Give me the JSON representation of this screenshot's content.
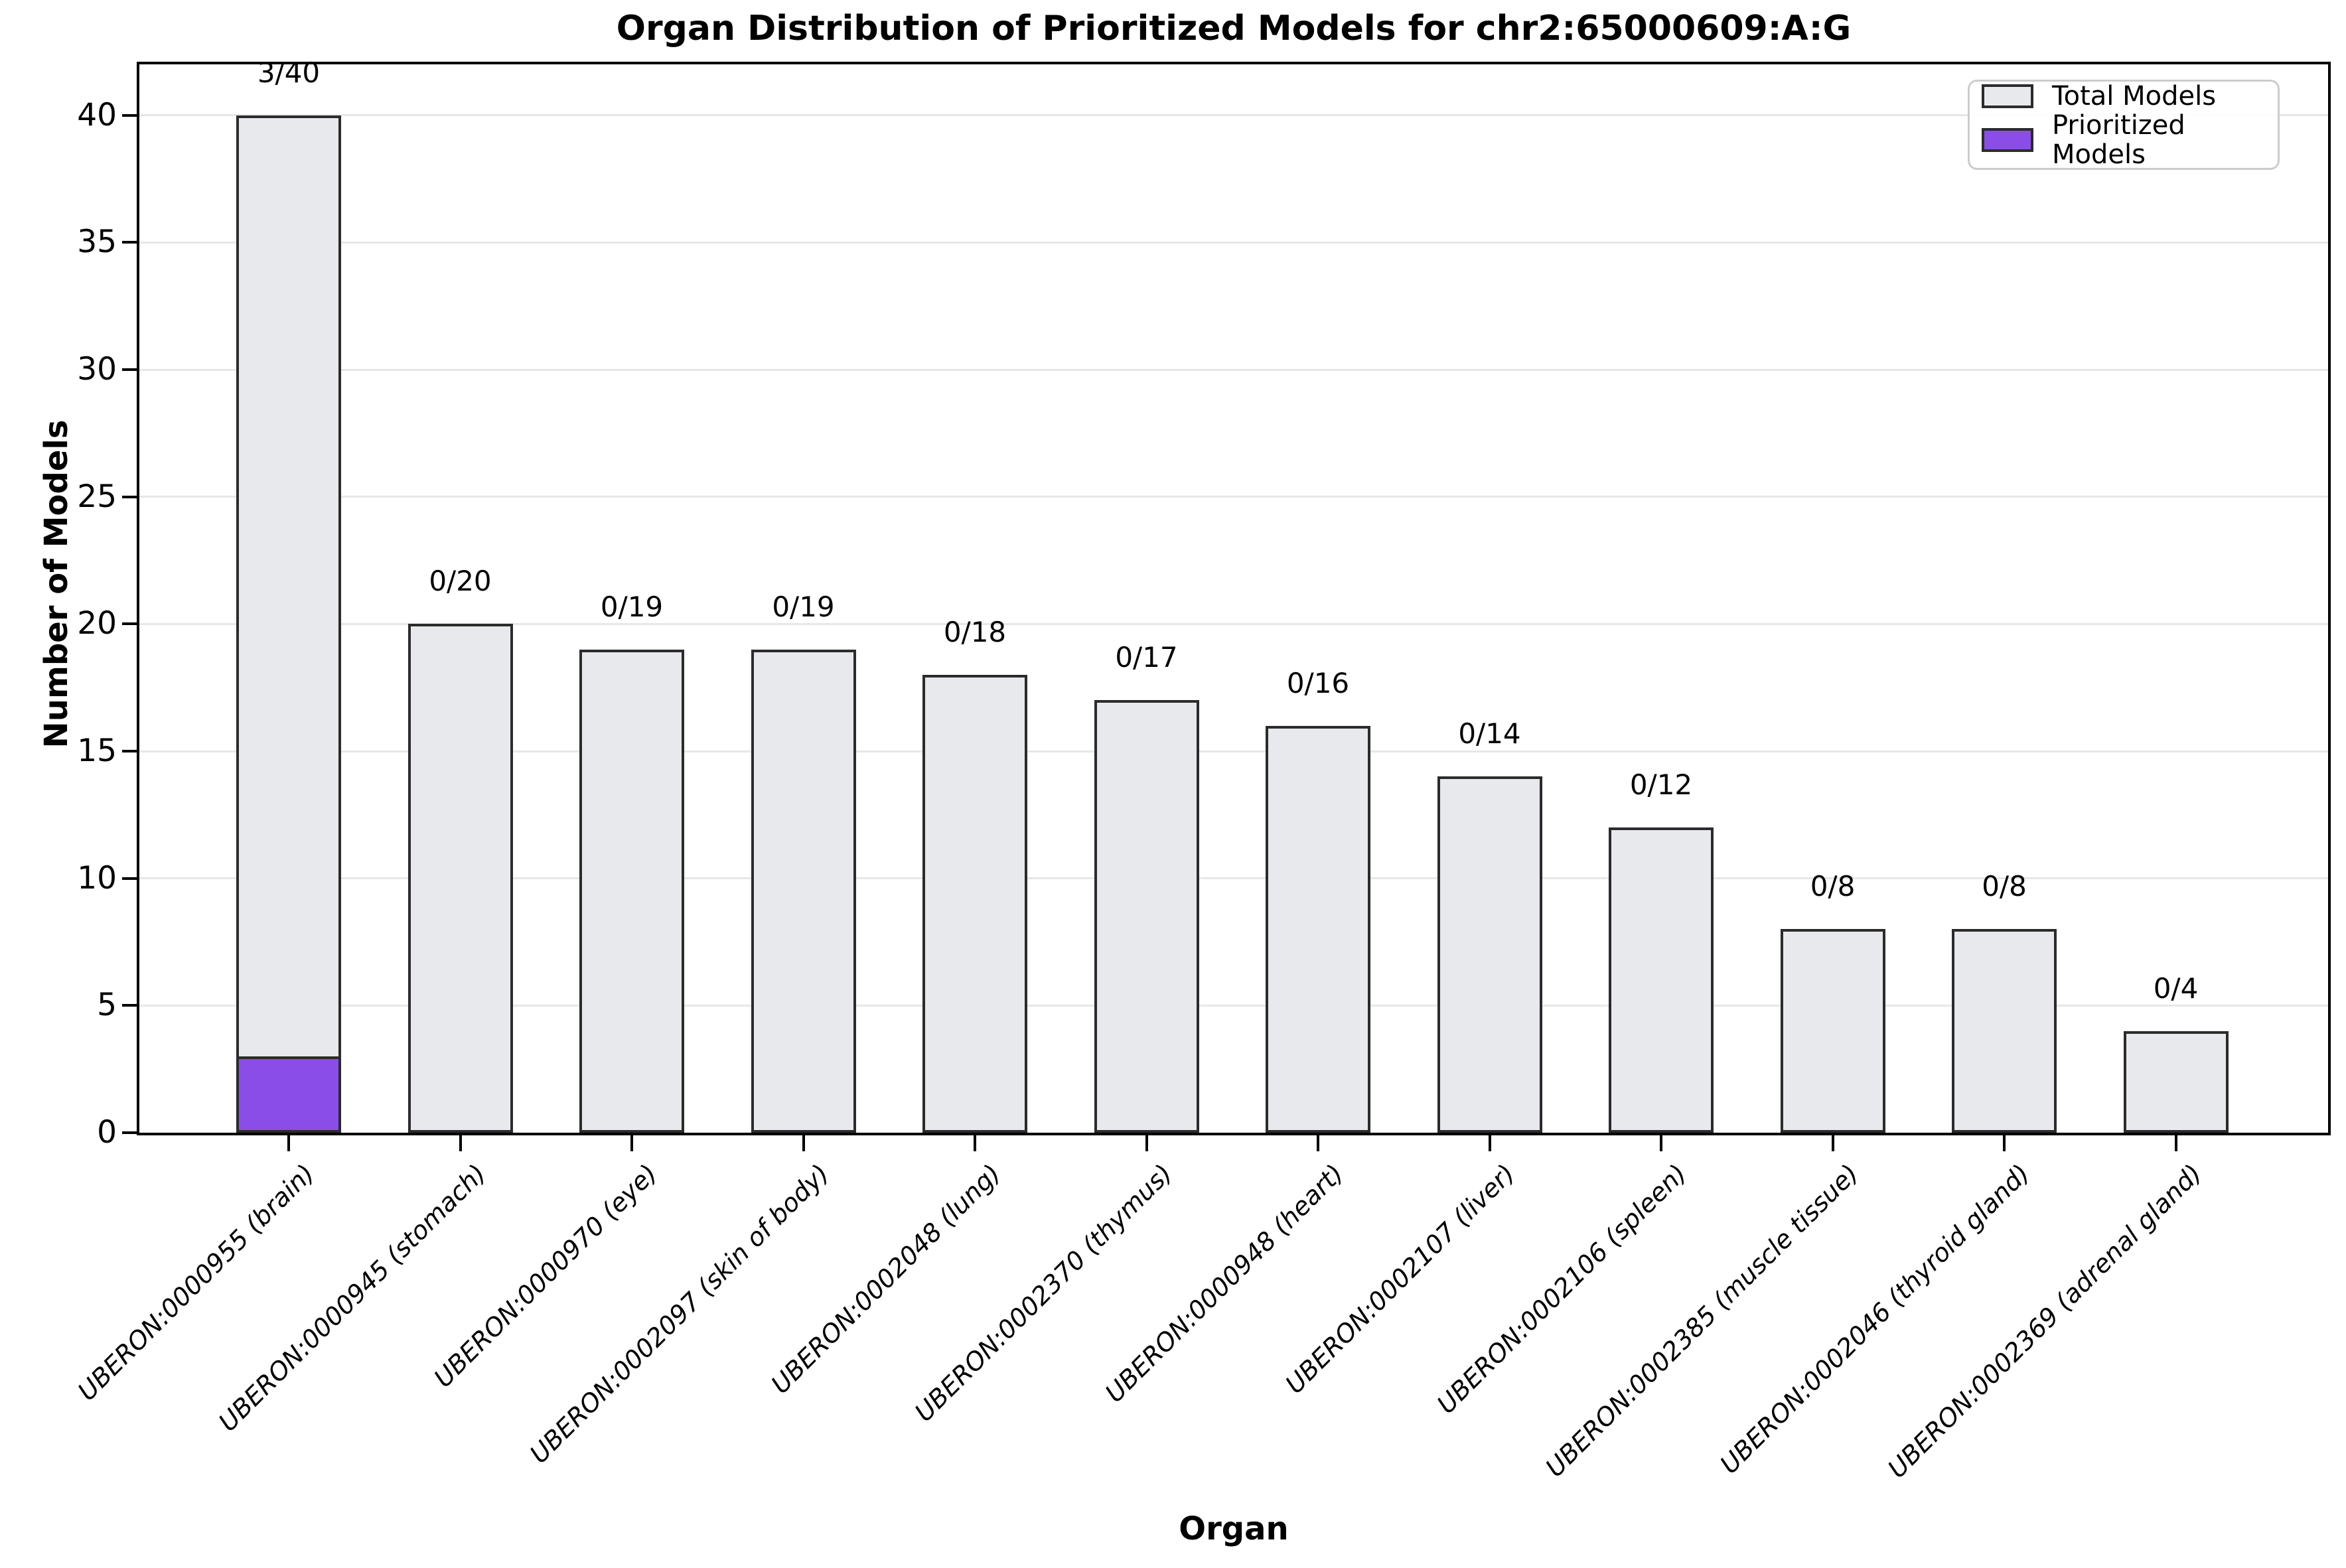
{
  "title": "Organ Distribution of Prioritized Models for chr2:65000609:A:G",
  "x_axis_label": "Organ",
  "y_axis_label": "Number of Models",
  "legend": {
    "items": [
      {
        "label": "Total Models",
        "color": "#e8e9ed"
      },
      {
        "label": "Prioritized Models",
        "color": "#8a4de8"
      }
    ]
  },
  "chart_data": {
    "type": "bar",
    "title": "Organ Distribution of Prioritized Models for chr2:65000609:A:G",
    "xlabel": "Organ",
    "ylabel": "Number of Models",
    "categories": [
      "UBERON:0000955 (brain)",
      "UBERON:0000945 (stomach)",
      "UBERON:0000970 (eye)",
      "UBERON:0002097 (skin of body)",
      "UBERON:0002048 (lung)",
      "UBERON:0002370 (thymus)",
      "UBERON:0000948 (heart)",
      "UBERON:0002107 (liver)",
      "UBERON:0002106 (spleen)",
      "UBERON:0002385 (muscle tissue)",
      "UBERON:0002046 (thyroid gland)",
      "UBERON:0002369 (adrenal gland)"
    ],
    "series": [
      {
        "name": "Total Models",
        "values": [
          40,
          20,
          19,
          19,
          18,
          17,
          16,
          14,
          12,
          8,
          8,
          4
        ],
        "color": "#e8e9ed"
      },
      {
        "name": "Prioritized Models",
        "values": [
          3,
          0,
          0,
          0,
          0,
          0,
          0,
          0,
          0,
          0,
          0,
          0
        ],
        "color": "#8a4de8"
      }
    ],
    "bar_labels": [
      "3/40",
      "0/20",
      "0/19",
      "0/19",
      "0/18",
      "0/17",
      "0/16",
      "0/14",
      "0/12",
      "0/8",
      "0/8",
      "0/4"
    ],
    "y_ticks": [
      0,
      5,
      10,
      15,
      20,
      25,
      30,
      35,
      40
    ],
    "ylim": [
      0,
      42
    ],
    "grid": "horizontal",
    "legend_position": "upper right",
    "bar_edge_color": "#2b2b2b",
    "axis_color": "#000000",
    "gridline_color": "#e7e7e7"
  }
}
